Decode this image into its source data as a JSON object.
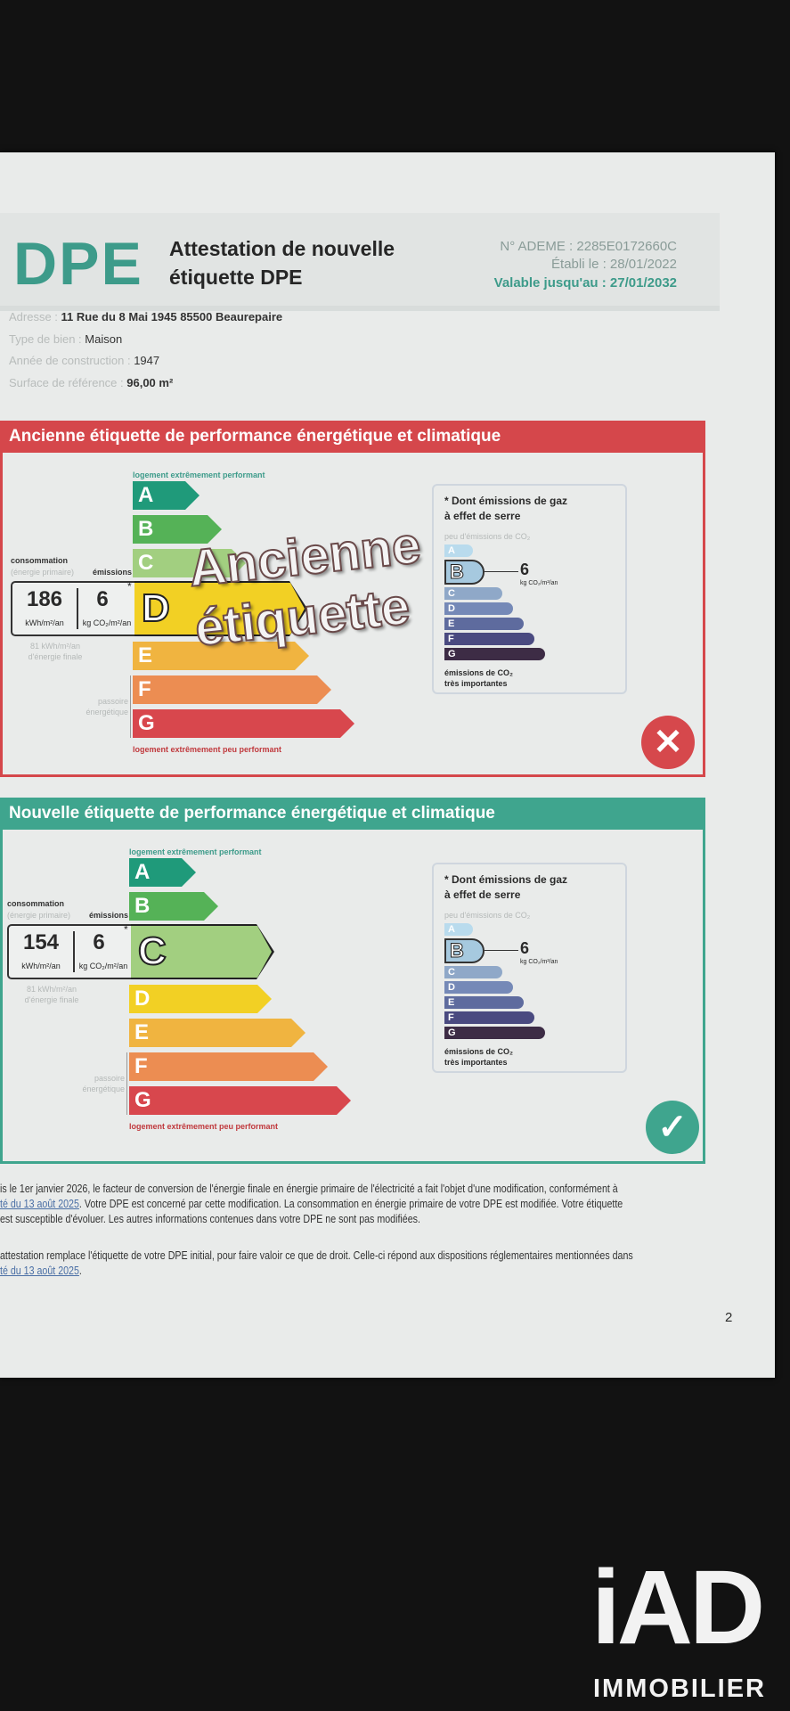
{
  "header": {
    "logo": "DPE",
    "title_line1": "Attestation de nouvelle",
    "title_line2": "étiquette DPE",
    "ademe": "N° ADEME : 2285E0172660C",
    "etabli": "Établi le : 28/01/2022",
    "valable": "Valable jusqu'au : 27/01/2032"
  },
  "info": [
    {
      "label": "Adresse : ",
      "value": "11 Rue du 8 Mai 1945 85500 Beaurepaire"
    },
    {
      "label": "Type de bien : ",
      "value": "Maison"
    },
    {
      "label": "Année de construction : ",
      "value": "1947"
    },
    {
      "label": "Surface de référence : ",
      "value": "96,00 m²"
    }
  ],
  "classes": [
    "A",
    "B",
    "C",
    "D",
    "E",
    "F",
    "G"
  ],
  "energy_colors": [
    "#1f9a7a",
    "#55b257",
    "#a2cf80",
    "#f2d024",
    "#f0b440",
    "#ec8d52",
    "#d8474d"
  ],
  "co2_colors": [
    "#b9dbed",
    "#a6c9df",
    "#8fa8c8",
    "#7589b7",
    "#5e6b9e",
    "#4a4a80",
    "#3d2c45"
  ],
  "labels": {
    "top": "logement extrêmement performant",
    "bottom": "logement extrêmement peu performant",
    "consommation": "consommation",
    "primaire": "(énergie primaire)",
    "emissions": "émissions",
    "kwh": "kWh/m²/an",
    "kgco2": "kg CO₂/m²/an",
    "star": "*",
    "finale1": "81 kWh/m²/an",
    "finale2": "d'énergie finale",
    "passoire1": "passoire",
    "passoire2": "énergétique",
    "co2_title1": "* Dont émissions de gaz",
    "co2_title2": "à effet de serre",
    "co2_top": "peu d'émissions de CO₂",
    "co2_bottom1": "émissions de CO₂",
    "co2_bottom2": "très importantes"
  },
  "old": {
    "heading": "Ancienne étiquette de performance énergétique et climatique",
    "color": "#d5474b",
    "energy_class": "D",
    "consumption": "186",
    "emissions": "6",
    "co2_class": "B",
    "watermark": "Ancienne étiquette",
    "status_icon": "x-circle-icon"
  },
  "new": {
    "heading": "Nouvelle étiquette de performance énergétique et climatique",
    "color": "#3fa58e",
    "energy_class": "C",
    "consumption": "154",
    "emissions": "6",
    "co2_class": "B",
    "status_icon": "check-circle-icon"
  },
  "footer": {
    "p1_l1": "is le 1er janvier 2026, le facteur de conversion de l'énergie finale en énergie primaire de l'électricité a fait l'objet d'une modification, conformément à",
    "p1_l2_link": "té du 13 août 2025",
    "p1_l2": ". Votre DPE est concerné par cette modification. La consommation en énergie primaire de votre DPE est modifiée. Votre étiquette",
    "p1_l3": "est susceptible d'évoluer. Les autres informations contenues dans votre DPE ne sont pas modifiées.",
    "p2_l1": "attestation remplace l'étiquette de votre DPE initial, pour faire valoir ce que de droit. Celle-ci répond aux dispositions réglementaires mentionnées dans",
    "p2_l2_link": "té du 13 août 2025",
    "p2_l2": ".",
    "page": "2"
  },
  "brand": {
    "logo": "iAD",
    "sub": "IMMOBILIER"
  }
}
